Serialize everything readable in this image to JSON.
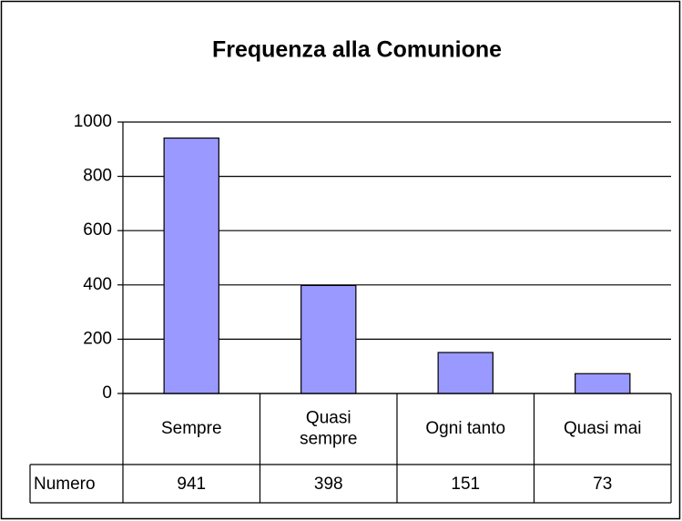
{
  "chart_data": {
    "type": "bar",
    "title": "Frequenza alla Comunione",
    "categories": [
      "Sempre",
      "Quasi sempre",
      "Ogni tanto",
      "Quasi mai"
    ],
    "series": [
      {
        "name": "Numero",
        "color": "#9999ff",
        "values": [
          941,
          398,
          151,
          73
        ]
      }
    ],
    "ylim": [
      0,
      1000
    ],
    "yticks": [
      0,
      200,
      400,
      600,
      800,
      1000
    ],
    "grid": true,
    "data_table": true
  }
}
